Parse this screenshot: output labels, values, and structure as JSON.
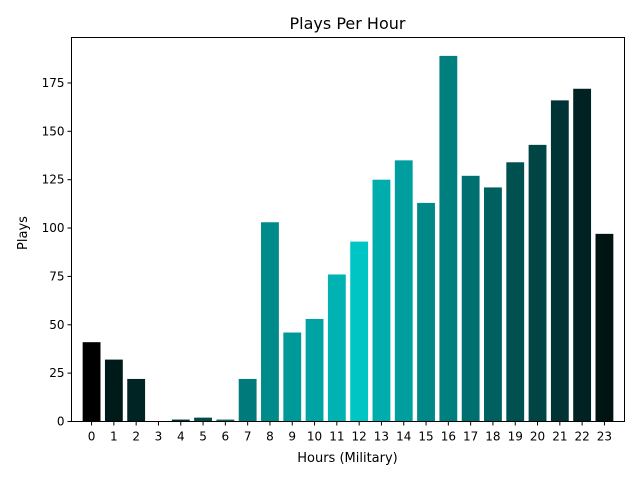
{
  "chart_data": {
    "type": "bar",
    "title": "Plays Per Hour",
    "xlabel": "Hours (Military)",
    "ylabel": "Plays",
    "categories": [
      "0",
      "1",
      "2",
      "3",
      "4",
      "5",
      "6",
      "7",
      "8",
      "9",
      "10",
      "11",
      "12",
      "13",
      "14",
      "15",
      "16",
      "17",
      "18",
      "19",
      "20",
      "21",
      "22",
      "23"
    ],
    "values": [
      41,
      32,
      22,
      0,
      1,
      2,
      1,
      22,
      103,
      46,
      53,
      76,
      93,
      125,
      135,
      113,
      189,
      127,
      121,
      134,
      143,
      166,
      172,
      97
    ],
    "colors": [
      "#000000",
      "#001919",
      "#002424",
      "#001a1a",
      "#003333",
      "#004c4c",
      "#006666",
      "#007a7a",
      "#008b8b",
      "#009999",
      "#00a3a3",
      "#00b2b2",
      "#00c5c5",
      "#00adad",
      "#009e9e",
      "#008888",
      "#007f7f",
      "#006f6f",
      "#006060",
      "#005050",
      "#004444",
      "#003333",
      "#002222",
      "#001414"
    ],
    "yticks": [
      0,
      25,
      50,
      75,
      100,
      125,
      150,
      175
    ],
    "ylim": [
      0,
      198.5
    ],
    "grid": false,
    "legend": false
  }
}
